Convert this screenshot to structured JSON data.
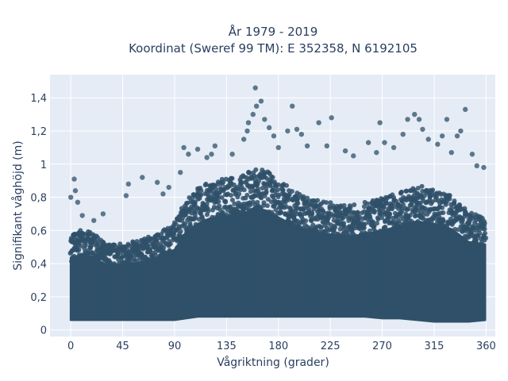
{
  "chart_data": {
    "type": "scatter",
    "title_line1": "År 1979 - 2019",
    "title_line2": "Koordinat (Sweref 99 TM): E 352358, N 6192105",
    "xlabel": "Vågriktning (grader)",
    "ylabel": "Signifikant våghöjd (m)",
    "xlim": [
      -18,
      368
    ],
    "ylim": [
      -0.04,
      1.54
    ],
    "x_ticks": [
      0,
      45,
      90,
      135,
      180,
      225,
      270,
      315,
      360
    ],
    "y_ticks": [
      0,
      0.2,
      0.4,
      0.6,
      0.8,
      1,
      1.2,
      1.4
    ],
    "y_tick_labels": [
      "0",
      "0,2",
      "0,4",
      "0,6",
      "0,8",
      "1",
      "1,2",
      "1,4"
    ],
    "grid": true,
    "background": "#e5ecf6",
    "marker_color": "#2f5068",
    "envelope": {
      "direction": [
        0,
        10,
        20,
        30,
        45,
        60,
        75,
        90,
        100,
        110,
        120,
        135,
        150,
        160,
        170,
        180,
        195,
        210,
        225,
        240,
        255,
        270,
        285,
        300,
        315,
        330,
        345,
        360
      ],
      "upper_dense": [
        0.56,
        0.58,
        0.56,
        0.5,
        0.5,
        0.52,
        0.56,
        0.62,
        0.76,
        0.82,
        0.86,
        0.88,
        0.9,
        0.95,
        0.92,
        0.87,
        0.8,
        0.76,
        0.74,
        0.72,
        0.74,
        0.77,
        0.8,
        0.84,
        0.82,
        0.78,
        0.68,
        0.66
      ],
      "lower": [
        0.06,
        0.06,
        0.06,
        0.06,
        0.06,
        0.06,
        0.06,
        0.06,
        0.07,
        0.08,
        0.08,
        0.08,
        0.08,
        0.08,
        0.08,
        0.08,
        0.08,
        0.08,
        0.08,
        0.08,
        0.08,
        0.07,
        0.07,
        0.06,
        0.05,
        0.05,
        0.05,
        0.06
      ]
    },
    "outliers": [
      {
        "x": 0,
        "y": 0.8
      },
      {
        "x": 3,
        "y": 0.91
      },
      {
        "x": 4,
        "y": 0.84
      },
      {
        "x": 6,
        "y": 0.77
      },
      {
        "x": 10,
        "y": 0.69
      },
      {
        "x": 20,
        "y": 0.66
      },
      {
        "x": 28,
        "y": 0.7
      },
      {
        "x": 48,
        "y": 0.81
      },
      {
        "x": 50,
        "y": 0.88
      },
      {
        "x": 62,
        "y": 0.92
      },
      {
        "x": 75,
        "y": 0.89
      },
      {
        "x": 80,
        "y": 0.82
      },
      {
        "x": 85,
        "y": 0.86
      },
      {
        "x": 95,
        "y": 0.95
      },
      {
        "x": 98,
        "y": 1.1
      },
      {
        "x": 102,
        "y": 1.06
      },
      {
        "x": 110,
        "y": 1.09
      },
      {
        "x": 118,
        "y": 1.04
      },
      {
        "x": 122,
        "y": 1.06
      },
      {
        "x": 125,
        "y": 1.11
      },
      {
        "x": 140,
        "y": 1.06
      },
      {
        "x": 150,
        "y": 1.15
      },
      {
        "x": 153,
        "y": 1.2
      },
      {
        "x": 154,
        "y": 1.25
      },
      {
        "x": 158,
        "y": 1.3
      },
      {
        "x": 160,
        "y": 1.46
      },
      {
        "x": 161,
        "y": 1.35
      },
      {
        "x": 165,
        "y": 1.38
      },
      {
        "x": 168,
        "y": 1.27
      },
      {
        "x": 172,
        "y": 1.22
      },
      {
        "x": 176,
        "y": 1.17
      },
      {
        "x": 180,
        "y": 1.1
      },
      {
        "x": 188,
        "y": 1.2
      },
      {
        "x": 192,
        "y": 1.35
      },
      {
        "x": 196,
        "y": 1.21
      },
      {
        "x": 200,
        "y": 1.18
      },
      {
        "x": 205,
        "y": 1.11
      },
      {
        "x": 215,
        "y": 1.25
      },
      {
        "x": 222,
        "y": 1.11
      },
      {
        "x": 226,
        "y": 1.28
      },
      {
        "x": 238,
        "y": 1.08
      },
      {
        "x": 245,
        "y": 1.05
      },
      {
        "x": 258,
        "y": 1.13
      },
      {
        "x": 265,
        "y": 1.07
      },
      {
        "x": 268,
        "y": 1.25
      },
      {
        "x": 272,
        "y": 1.13
      },
      {
        "x": 280,
        "y": 1.1
      },
      {
        "x": 288,
        "y": 1.18
      },
      {
        "x": 292,
        "y": 1.27
      },
      {
        "x": 298,
        "y": 1.3
      },
      {
        "x": 302,
        "y": 1.27
      },
      {
        "x": 305,
        "y": 1.21
      },
      {
        "x": 310,
        "y": 1.15
      },
      {
        "x": 318,
        "y": 1.12
      },
      {
        "x": 322,
        "y": 1.17
      },
      {
        "x": 326,
        "y": 1.27
      },
      {
        "x": 330,
        "y": 1.07
      },
      {
        "x": 335,
        "y": 1.17
      },
      {
        "x": 338,
        "y": 1.2
      },
      {
        "x": 342,
        "y": 1.33
      },
      {
        "x": 348,
        "y": 1.06
      },
      {
        "x": 352,
        "y": 0.99
      },
      {
        "x": 358,
        "y": 0.98
      }
    ]
  }
}
